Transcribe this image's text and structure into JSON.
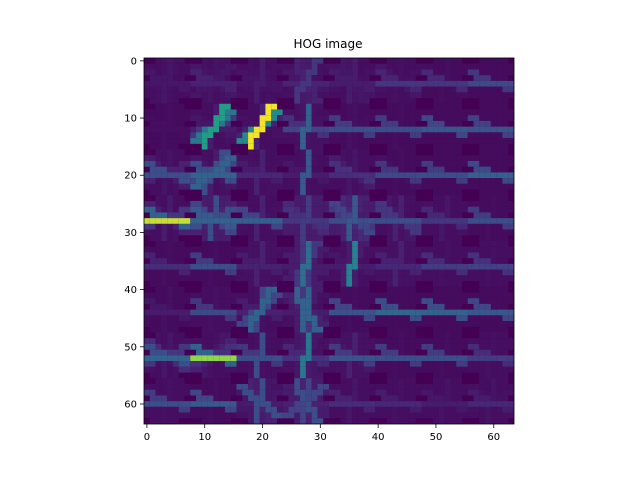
{
  "chart_data": {
    "type": "heatmap",
    "title": "HOG image",
    "xlabel": "",
    "ylabel": "",
    "grid": false,
    "colormap": "viridis",
    "background_color": "#440154",
    "image_size": [
      64,
      64
    ],
    "xlim": [
      -0.5,
      63.5
    ],
    "ylim": [
      63.5,
      -0.5
    ],
    "x_ticks": [
      0,
      10,
      20,
      30,
      40,
      50,
      60
    ],
    "y_ticks": [
      0,
      10,
      20,
      30,
      40,
      50,
      60
    ],
    "x_tick_labels": [
      "0",
      "10",
      "20",
      "30",
      "40",
      "50",
      "60"
    ],
    "y_tick_labels": [
      "0",
      "10",
      "20",
      "30",
      "40",
      "50",
      "60"
    ],
    "cell_size": 8,
    "orientation_bins_deg": [
      0,
      20,
      40,
      60,
      80,
      100,
      120,
      140,
      160
    ],
    "cells": [
      [
        [
          0.08,
          0.05,
          0.05,
          0.06,
          0.08,
          0.06,
          0.05,
          0.05,
          0.08
        ],
        [
          0.12,
          0.05,
          0.08,
          0.06,
          0.07,
          0.05,
          0.06,
          0.08,
          0.12
        ],
        [
          0.07,
          0.05,
          0.06,
          0.05,
          0.1,
          0.05,
          0.06,
          0.05,
          0.07
        ],
        [
          0.13,
          0.05,
          0.06,
          0.2,
          0.09,
          0.1,
          0.12,
          0.06,
          0.08
        ],
        [
          0.1,
          0.06,
          0.05,
          0.05,
          0.1,
          0.07,
          0.08,
          0.07,
          0.1
        ],
        [
          0.2,
          0.06,
          0.05,
          0.05,
          0.06,
          0.05,
          0.05,
          0.08,
          0.13
        ],
        [
          0.2,
          0.04,
          0.04,
          0.04,
          0.05,
          0.04,
          0.04,
          0.05,
          0.15
        ],
        [
          0.28,
          0.04,
          0.04,
          0.04,
          0.04,
          0.04,
          0.04,
          0.04,
          0.2
        ]
      ],
      [
        [
          0.05,
          0.04,
          0.04,
          0.04,
          0.05,
          0.04,
          0.04,
          0.04,
          0.05
        ],
        [
          0.1,
          0.2,
          0.5,
          0.7,
          0.1,
          0.05,
          0.05,
          0.06,
          0.08
        ],
        [
          0.06,
          0.12,
          0.6,
          0.99,
          0.12,
          0.05,
          0.05,
          0.05,
          0.06
        ],
        [
          0.25,
          0.06,
          0.05,
          0.06,
          0.4,
          0.07,
          0.06,
          0.06,
          0.18
        ],
        [
          0.3,
          0.05,
          0.04,
          0.04,
          0.06,
          0.05,
          0.04,
          0.04,
          0.22
        ],
        [
          0.3,
          0.04,
          0.04,
          0.04,
          0.05,
          0.04,
          0.04,
          0.04,
          0.22
        ],
        [
          0.34,
          0.04,
          0.04,
          0.04,
          0.04,
          0.04,
          0.04,
          0.04,
          0.26
        ],
        [
          0.32,
          0.04,
          0.04,
          0.04,
          0.04,
          0.04,
          0.04,
          0.04,
          0.24
        ]
      ],
      [
        [
          0.3,
          0.12,
          0.05,
          0.05,
          0.07,
          0.05,
          0.06,
          0.1,
          0.3
        ],
        [
          0.4,
          0.25,
          0.4,
          0.3,
          0.1,
          0.05,
          0.06,
          0.08,
          0.3
        ],
        [
          0.14,
          0.05,
          0.05,
          0.05,
          0.12,
          0.05,
          0.06,
          0.06,
          0.1
        ],
        [
          0.1,
          0.05,
          0.05,
          0.06,
          0.35,
          0.06,
          0.05,
          0.05,
          0.08
        ],
        [
          0.16,
          0.05,
          0.05,
          0.05,
          0.08,
          0.05,
          0.06,
          0.1,
          0.18
        ],
        [
          0.28,
          0.04,
          0.04,
          0.04,
          0.05,
          0.04,
          0.04,
          0.06,
          0.2
        ],
        [
          0.3,
          0.04,
          0.04,
          0.04,
          0.04,
          0.04,
          0.04,
          0.04,
          0.22
        ],
        [
          0.38,
          0.04,
          0.04,
          0.04,
          0.04,
          0.04,
          0.04,
          0.04,
          0.28
        ]
      ],
      [
        [
          0.95,
          0.2,
          0.05,
          0.05,
          0.1,
          0.05,
          0.06,
          0.12,
          0.4
        ],
        [
          0.4,
          0.3,
          0.12,
          0.1,
          0.3,
          0.1,
          0.1,
          0.25,
          0.35
        ],
        [
          0.38,
          0.06,
          0.05,
          0.05,
          0.12,
          0.05,
          0.05,
          0.06,
          0.25
        ],
        [
          0.2,
          0.1,
          0.1,
          0.1,
          0.22,
          0.1,
          0.1,
          0.15,
          0.18
        ],
        [
          0.3,
          0.1,
          0.1,
          0.12,
          0.35,
          0.12,
          0.15,
          0.25,
          0.2
        ],
        [
          0.3,
          0.05,
          0.05,
          0.06,
          0.12,
          0.06,
          0.08,
          0.2,
          0.2
        ],
        [
          0.2,
          0.05,
          0.05,
          0.05,
          0.08,
          0.05,
          0.05,
          0.06,
          0.14
        ],
        [
          0.3,
          0.04,
          0.04,
          0.04,
          0.05,
          0.04,
          0.04,
          0.04,
          0.22
        ]
      ],
      [
        [
          0.16,
          0.04,
          0.04,
          0.04,
          0.05,
          0.04,
          0.04,
          0.04,
          0.12
        ],
        [
          0.3,
          0.04,
          0.04,
          0.04,
          0.05,
          0.04,
          0.04,
          0.04,
          0.22
        ],
        [
          0.12,
          0.05,
          0.06,
          0.06,
          0.12,
          0.06,
          0.06,
          0.05,
          0.1
        ],
        [
          0.1,
          0.06,
          0.1,
          0.2,
          0.45,
          0.2,
          0.1,
          0.06,
          0.1
        ],
        [
          0.1,
          0.05,
          0.06,
          0.1,
          0.55,
          0.1,
          0.06,
          0.05,
          0.08
        ],
        [
          0.14,
          0.06,
          0.06,
          0.06,
          0.12,
          0.06,
          0.06,
          0.06,
          0.12
        ],
        [
          0.22,
          0.05,
          0.05,
          0.05,
          0.06,
          0.05,
          0.05,
          0.05,
          0.16
        ],
        [
          0.24,
          0.05,
          0.05,
          0.05,
          0.06,
          0.05,
          0.05,
          0.05,
          0.18
        ]
      ],
      [
        [
          0.1,
          0.04,
          0.04,
          0.04,
          0.06,
          0.04,
          0.04,
          0.04,
          0.08
        ],
        [
          0.28,
          0.05,
          0.05,
          0.05,
          0.06,
          0.05,
          0.05,
          0.05,
          0.2
        ],
        [
          0.12,
          0.06,
          0.25,
          0.4,
          0.25,
          0.06,
          0.05,
          0.05,
          0.1
        ],
        [
          0.1,
          0.05,
          0.06,
          0.1,
          0.4,
          0.2,
          0.4,
          0.12,
          0.08
        ],
        [
          0.32,
          0.04,
          0.04,
          0.04,
          0.05,
          0.04,
          0.04,
          0.04,
          0.25
        ],
        [
          0.42,
          0.04,
          0.04,
          0.04,
          0.04,
          0.04,
          0.04,
          0.04,
          0.3
        ],
        [
          0.4,
          0.04,
          0.04,
          0.04,
          0.04,
          0.04,
          0.04,
          0.04,
          0.3
        ],
        [
          0.34,
          0.04,
          0.04,
          0.04,
          0.04,
          0.04,
          0.04,
          0.04,
          0.26
        ]
      ],
      [
        [
          0.4,
          0.2,
          0.06,
          0.05,
          0.08,
          0.05,
          0.06,
          0.16,
          0.3
        ],
        [
          0.9,
          0.18,
          0.12,
          0.08,
          0.06,
          0.05,
          0.05,
          0.06,
          0.4
        ],
        [
          0.3,
          0.05,
          0.05,
          0.06,
          0.3,
          0.06,
          0.05,
          0.05,
          0.2
        ],
        [
          0.18,
          0.06,
          0.06,
          0.08,
          0.5,
          0.1,
          0.08,
          0.06,
          0.14
        ],
        [
          0.32,
          0.06,
          0.06,
          0.06,
          0.12,
          0.06,
          0.06,
          0.08,
          0.22
        ],
        [
          0.3,
          0.04,
          0.04,
          0.04,
          0.05,
          0.04,
          0.04,
          0.04,
          0.22
        ],
        [
          0.3,
          0.04,
          0.04,
          0.04,
          0.05,
          0.04,
          0.04,
          0.04,
          0.22
        ],
        [
          0.22,
          0.05,
          0.05,
          0.05,
          0.06,
          0.05,
          0.05,
          0.05,
          0.16
        ]
      ],
      [
        [
          0.3,
          0.05,
          0.05,
          0.05,
          0.06,
          0.05,
          0.05,
          0.05,
          0.22
        ],
        [
          0.35,
          0.04,
          0.04,
          0.04,
          0.05,
          0.04,
          0.04,
          0.04,
          0.26
        ],
        [
          0.1,
          0.08,
          0.06,
          0.08,
          0.3,
          0.1,
          0.12,
          0.3,
          0.08
        ],
        [
          0.12,
          0.1,
          0.25,
          0.1,
          0.25,
          0.12,
          0.3,
          0.1,
          0.1
        ],
        [
          0.16,
          0.05,
          0.05,
          0.05,
          0.08,
          0.05,
          0.05,
          0.05,
          0.12
        ],
        [
          0.14,
          0.05,
          0.05,
          0.05,
          0.06,
          0.05,
          0.05,
          0.05,
          0.1
        ],
        [
          0.1,
          0.05,
          0.05,
          0.05,
          0.07,
          0.05,
          0.05,
          0.05,
          0.08
        ],
        [
          0.14,
          0.06,
          0.05,
          0.05,
          0.07,
          0.05,
          0.05,
          0.06,
          0.1
        ]
      ]
    ]
  }
}
